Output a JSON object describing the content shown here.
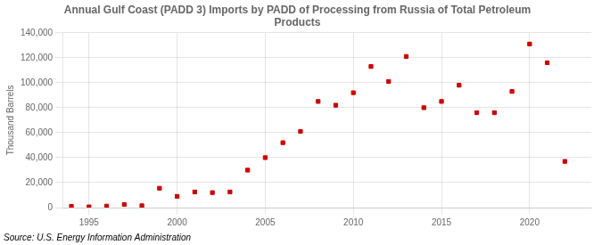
{
  "chart_data": {
    "type": "scatter",
    "title": "Annual Gulf Coast (PADD 3) Imports by PADD of Processing from Russia of Total Petroleum\nProducts",
    "y_label": "Thousand Barrels",
    "annotations": [
      "Source: U.S. Energy Information Administration"
    ],
    "x": [
      1994,
      1995,
      1996,
      1997,
      1998,
      1999,
      2000,
      2001,
      2002,
      2003,
      2004,
      2005,
      2006,
      2007,
      2008,
      2009,
      2010,
      2011,
      2012,
      2013,
      2014,
      2015,
      2016,
      2017,
      2018,
      2019,
      2020,
      2021,
      2022
    ],
    "values": [
      1000,
      600,
      1200,
      2500,
      1500,
      15500,
      9000,
      12500,
      12000,
      12500,
      30000,
      40000,
      52000,
      61000,
      85000,
      82000,
      92000,
      113000,
      101000,
      121000,
      80000,
      85000,
      98000,
      76000,
      76000,
      93000,
      131000,
      116000,
      37000
    ],
    "color": "#cc0000",
    "marker": "square",
    "xlim": [
      1993.5,
      2023.5
    ],
    "xticks": [
      1995,
      2000,
      2005,
      2010,
      2015,
      2020
    ],
    "ylim": [
      0,
      140000
    ],
    "yticks": [
      0,
      {
        "value": 20000,
        "label": "20,000"
      },
      {
        "value": 40000,
        "label": "40,000"
      },
      {
        "value": 60000,
        "label": "60,000"
      },
      {
        "value": 80000,
        "label": "80,000"
      },
      {
        "value": 100000,
        "label": "100,000"
      },
      {
        "value": 120000,
        "label": "120,000"
      },
      {
        "value": 140000,
        "label": "140,000"
      }
    ],
    "grid": true
  }
}
